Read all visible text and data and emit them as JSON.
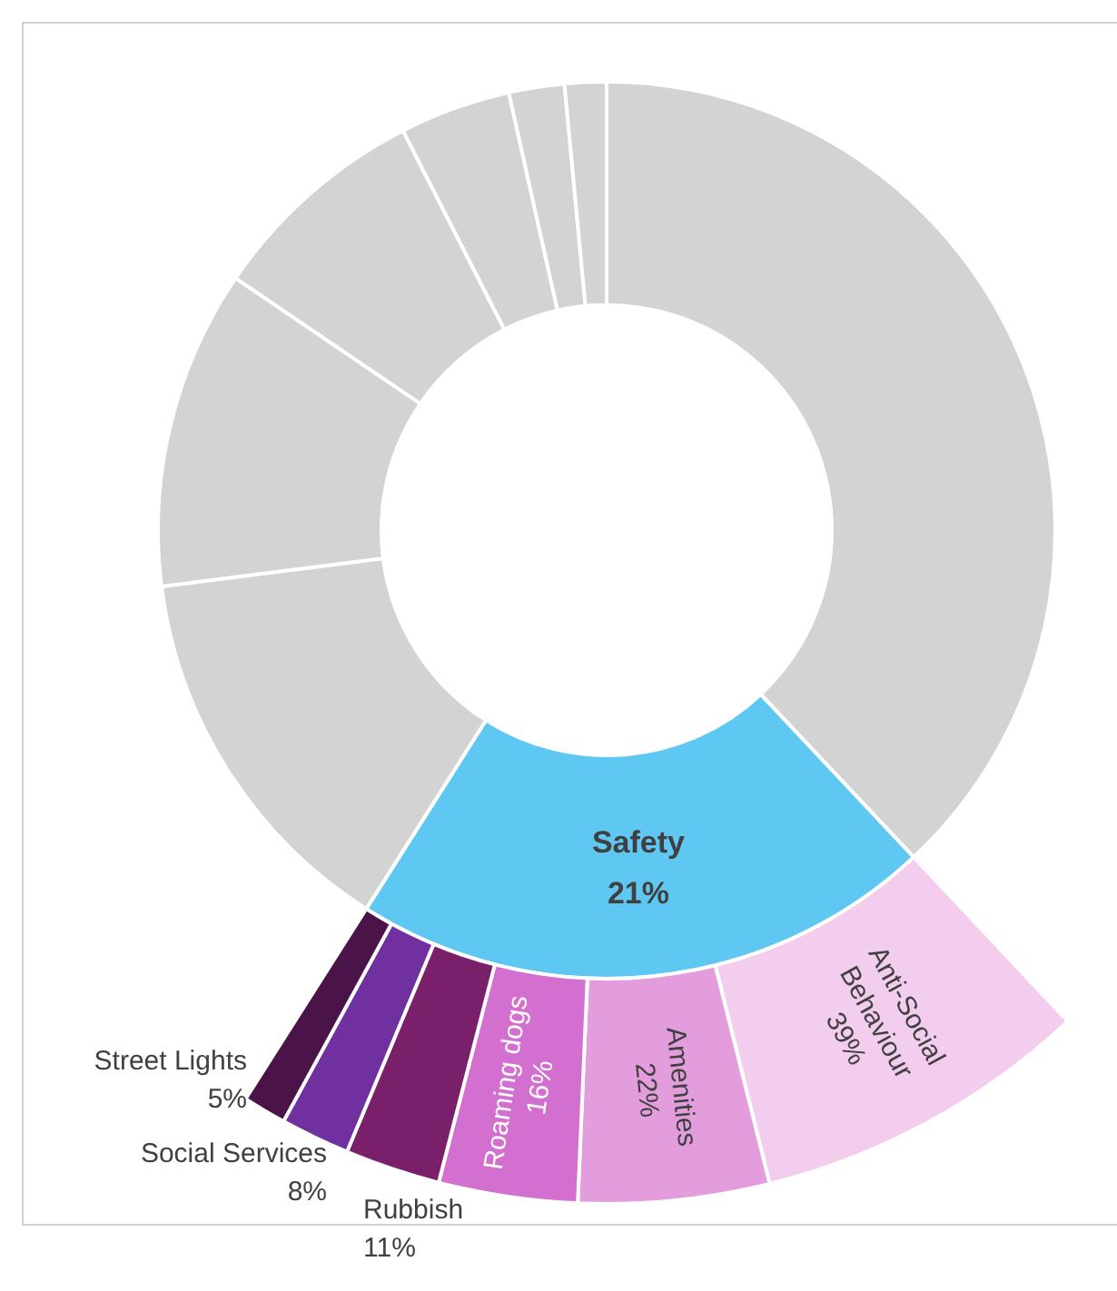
{
  "chart_data": [
    {
      "type": "donut",
      "categories": [
        null,
        "Safety",
        null,
        null,
        null,
        null,
        null,
        null
      ],
      "values": [
        38,
        21,
        14,
        11.5,
        8,
        4,
        2,
        1.5
      ],
      "colors": [
        "#d3d3d3",
        "#5ec8f2",
        "#d3d3d3",
        "#d3d3d3",
        "#d3d3d3",
        "#d3d3d3",
        "#d3d3d3",
        "#d3d3d3"
      ],
      "value_labels": [
        null,
        "21%",
        null,
        null,
        null,
        null,
        null,
        null
      ]
    },
    {
      "type": "donut",
      "categories": [
        "Anti-Social Behaviour",
        "Amenities",
        "Roaming dogs",
        "Rubbish",
        "Social Services",
        "Street Lights"
      ],
      "values": [
        39,
        22,
        16,
        11,
        8,
        5
      ],
      "colors": [
        "#f2cdee",
        "#e39ddd",
        "#d36fcf",
        "#7a1f6a",
        "#7030a0",
        "#4a1448"
      ],
      "value_labels": [
        "39%",
        "22%",
        "16%",
        "11%",
        "8%",
        "5%"
      ]
    }
  ]
}
